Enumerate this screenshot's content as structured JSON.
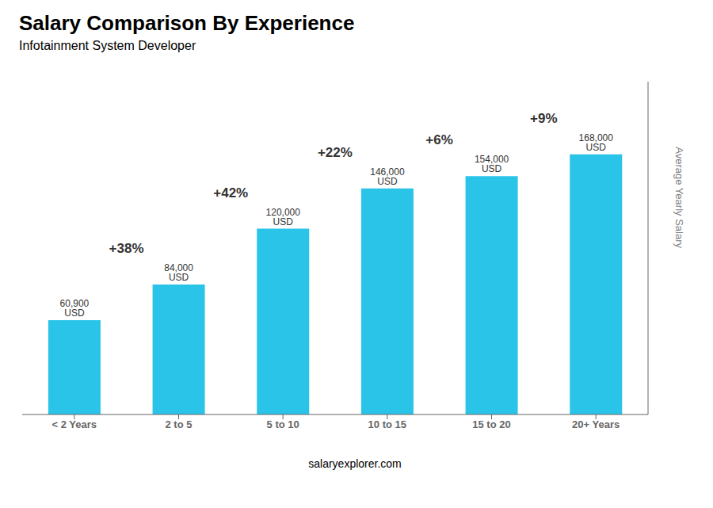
{
  "chart_data": {
    "type": "bar",
    "title": "Salary Comparison By Experience",
    "subtitle": "Infotainment System Developer",
    "categories": [
      "< 2 Years",
      "2 to 5",
      "5 to 10",
      "10 to 15",
      "15 to 20",
      "20+ Years"
    ],
    "values": [
      60900,
      84000,
      120000,
      146000,
      154000,
      168000
    ],
    "value_labels": [
      "60,900 USD",
      "84,000 USD",
      "120,000 USD",
      "146,000 USD",
      "154,000 USD",
      "168,000 USD"
    ],
    "data_labels": true,
    "color": "#29C4E8",
    "ylabel": "Average Yearly Salary",
    "ylim": [
      0,
      215000
    ],
    "tick_labels": "x",
    "grid": false,
    "annotations": [
      "+38%",
      "+42%",
      "+22%",
      "+6%",
      "+9%"
    ],
    "source": "salaryexplorer.com"
  }
}
